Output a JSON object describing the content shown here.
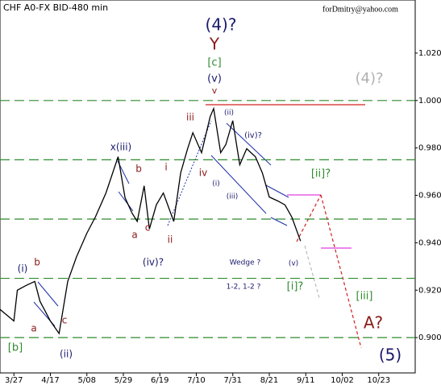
{
  "chart_data": {
    "type": "line",
    "title": "CHF A0-FX BID-480 min",
    "watermark": "forDmitry@yahoo.com",
    "x": [
      "3/19",
      "3/27",
      "3/29",
      "4/03",
      "4/08",
      "4/11",
      "4/17",
      "4/22",
      "4/27",
      "5/02",
      "5/08",
      "5/13",
      "5/19",
      "5/26",
      "5/30",
      "6/03",
      "6/06",
      "6/10",
      "6/13",
      "6/17",
      "6/21",
      "6/27",
      "7/01",
      "7/05",
      "7/08",
      "7/13",
      "7/18",
      "7/20",
      "7/24",
      "7/27",
      "7/31",
      "8/04",
      "8/08",
      "8/13",
      "8/17",
      "8/21",
      "8/26",
      "8/30",
      "9/03",
      "9/08"
    ],
    "series": [
      {
        "name": "CHF A0-FX",
        "color": "#000000",
        "values": [
          0.9119,
          0.907,
          0.92,
          0.922,
          0.9237,
          0.9153,
          0.907,
          0.9017,
          0.9237,
          0.934,
          0.944,
          0.951,
          0.961,
          0.9763,
          0.959,
          0.9525,
          0.949,
          0.964,
          0.9458,
          0.956,
          0.961,
          0.949,
          0.9695,
          0.9797,
          0.9864,
          0.978,
          0.9932,
          0.9966,
          0.978,
          0.9814,
          0.9915,
          0.9729,
          0.9797,
          0.9763,
          0.9695,
          0.9593,
          0.9576,
          0.956,
          0.9508,
          0.9407
        ]
      }
    ],
    "xlim": [
      "3/19",
      "11/13"
    ],
    "xticks": [
      "3/27",
      "4/17",
      "5/08",
      "5/29",
      "6/19",
      "7/10",
      "7/31",
      "8/21",
      "9/11",
      "10/02",
      "10/23"
    ],
    "ylim": [
      0.8851,
      1.0424
    ],
    "yticks": [
      {
        "value": 0.9,
        "label": "0.9000"
      },
      {
        "value": 0.92,
        "label": "0.9200"
      },
      {
        "value": 0.94,
        "label": "0.9400"
      },
      {
        "value": 0.96,
        "label": "0.9600"
      },
      {
        "value": 0.98,
        "label": "0.9800"
      },
      {
        "value": 1.0,
        "label": "1.0000"
      },
      {
        "value": 1.02,
        "label": "1.0200"
      }
    ],
    "levels": [
      1.0,
      0.975,
      0.95,
      0.925,
      0.9
    ],
    "level_color": "#2e8b2e",
    "annotations": [
      {
        "text": "(4)?",
        "color": "#1a1a6e"
      },
      {
        "text": "Y",
        "color": "#8b1a1a"
      },
      {
        "text": "[c]",
        "color": "#2e8b2e"
      },
      {
        "text": "(v)",
        "color": "#1a1a6e"
      },
      {
        "text": "v",
        "color": "#8b1a1a"
      },
      {
        "text": "(4)?",
        "color": "#b0b0b0"
      },
      {
        "text": "iii",
        "color": "#8b1a1a"
      },
      {
        "text": "(ii)",
        "color": "#1a1a6e"
      },
      {
        "text": "(iv)?",
        "color": "#1a1a6e"
      },
      {
        "text": "[ii]?",
        "color": "#2e8b2e"
      },
      {
        "text": "x(iii)",
        "color": "#1a1a6e"
      },
      {
        "text": "b",
        "color": "#8b1a1a"
      },
      {
        "text": "i",
        "color": "#8b1a1a"
      },
      {
        "text": "iv",
        "color": "#8b1a1a"
      },
      {
        "text": "(i)",
        "color": "#1a1a6e"
      },
      {
        "text": "(iii)",
        "color": "#1a1a6e"
      },
      {
        "text": "a",
        "color": "#8b1a1a"
      },
      {
        "text": "c",
        "color": "#8b1a1a"
      },
      {
        "text": "ii",
        "color": "#8b1a1a"
      },
      {
        "text": "(iv)?",
        "color": "#1a1a6e"
      },
      {
        "text": "Wedge ?",
        "color": "#1a1a6e"
      },
      {
        "text": "(v)",
        "color": "#1a1a6e"
      },
      {
        "text": "(i)",
        "color": "#1a1a6e"
      },
      {
        "text": "b",
        "color": "#8b1a1a"
      },
      {
        "text": "1-2, 1-2 ?",
        "color": "#1a1a6e"
      },
      {
        "text": "[i]?",
        "color": "#2e8b2e"
      },
      {
        "text": "c",
        "color": "#8b1a1a"
      },
      {
        "text": "a",
        "color": "#8b1a1a"
      },
      {
        "text": "[iii]",
        "color": "#2e8b2e"
      },
      {
        "text": "A?",
        "color": "#8b1a1a"
      },
      {
        "text": "[b]",
        "color": "#2e8b2e"
      },
      {
        "text": "(ii)",
        "color": "#1a1a6e"
      },
      {
        "text": "(5)",
        "color": "#1a1a6e"
      }
    ]
  }
}
